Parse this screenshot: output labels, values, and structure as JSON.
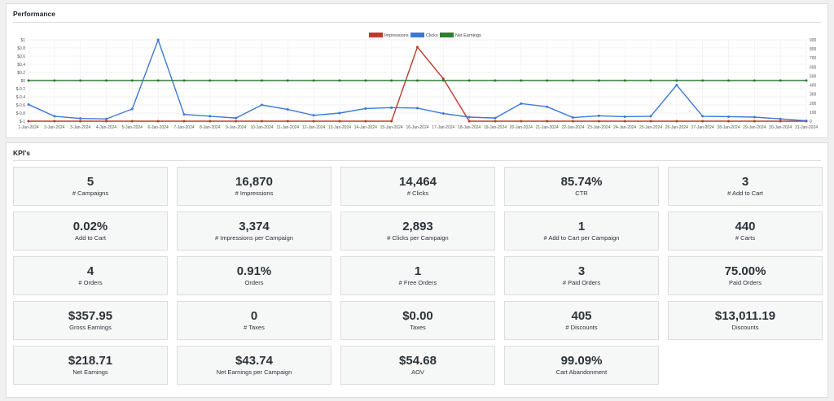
{
  "performance": {
    "title": "Performance"
  },
  "kpis": {
    "title": "KPI's",
    "cards": [
      {
        "value": "5",
        "label": "# Campaigns"
      },
      {
        "value": "16,870",
        "label": "# Impressions"
      },
      {
        "value": "14,464",
        "label": "# Clicks"
      },
      {
        "value": "85.74%",
        "label": "CTR"
      },
      {
        "value": "3",
        "label": "# Add to Cart"
      },
      {
        "value": "0.02%",
        "label": "Add to Cart"
      },
      {
        "value": "3,374",
        "label": "# Impressions per Campaign"
      },
      {
        "value": "2,893",
        "label": "# Clicks per Campaign"
      },
      {
        "value": "1",
        "label": "# Add to Cart per Campaign"
      },
      {
        "value": "440",
        "label": "# Carts"
      },
      {
        "value": "4",
        "label": "# Orders"
      },
      {
        "value": "0.91%",
        "label": "Orders"
      },
      {
        "value": "1",
        "label": "# Free Orders"
      },
      {
        "value": "3",
        "label": "# Paid Orders"
      },
      {
        "value": "75.00%",
        "label": "Paid Orders"
      },
      {
        "value": "$357.95",
        "label": "Gross Earnings"
      },
      {
        "value": "0",
        "label": "# Taxes"
      },
      {
        "value": "$0.00",
        "label": "Taxes"
      },
      {
        "value": "405",
        "label": "# Discounts"
      },
      {
        "value": "$13,011.19",
        "label": "Discounts"
      },
      {
        "value": "$218.71",
        "label": "Net Earnings"
      },
      {
        "value": "$43.74",
        "label": "Net Earnings per Campaign"
      },
      {
        "value": "$54.68",
        "label": "AOV"
      },
      {
        "value": "99.09%",
        "label": "Cart Abandonment"
      }
    ]
  },
  "chart_data": {
    "type": "line",
    "x": [
      "1-Jan-2024",
      "2-Jan-2024",
      "3-Jan-2024",
      "4-Jan-2024",
      "5-Jan-2024",
      "6-Jan-2024",
      "7-Jan-2024",
      "8-Jan-2024",
      "9-Jan-2024",
      "10-Jan-2024",
      "11-Jan-2024",
      "12-Jan-2024",
      "13-Jan-2024",
      "14-Jan-2024",
      "15-Jan-2024",
      "16-Jan-2024",
      "17-Jan-2024",
      "18-Jan-2024",
      "19-Jan-2024",
      "20-Jan-2024",
      "21-Jan-2024",
      "22-Jan-2024",
      "23-Jan-2024",
      "24-Jan-2024",
      "25-Jan-2024",
      "26-Jan-2024",
      "27-Jan-2024",
      "28-Jan-2024",
      "29-Jan-2024",
      "30-Jan-2024",
      "31-Jan-2024"
    ],
    "series": [
      {
        "name": "Impressions",
        "color": "#c0392b",
        "axis": "right",
        "values": [
          0,
          0,
          0,
          0,
          0,
          0,
          0,
          0,
          0,
          0,
          0,
          0,
          0,
          0,
          0,
          820,
          470,
          0,
          0,
          0,
          0,
          0,
          0,
          0,
          0,
          0,
          0,
          0,
          0,
          0,
          0
        ]
      },
      {
        "name": "Clicks",
        "color": "#3c78d8",
        "axis": "right",
        "values": [
          185,
          55,
          30,
          25,
          135,
          900,
          75,
          55,
          35,
          180,
          130,
          65,
          90,
          140,
          150,
          145,
          85,
          45,
          35,
          195,
          160,
          40,
          60,
          50,
          55,
          400,
          55,
          50,
          45,
          25,
          5
        ]
      },
      {
        "name": "Net Earnings",
        "color": "#2e7d32",
        "axis": "left",
        "values": [
          0,
          0,
          0,
          0,
          0,
          0,
          0,
          0,
          0,
          0,
          0,
          0,
          0,
          0,
          0,
          0,
          0,
          0,
          0,
          0,
          0,
          0,
          0,
          0,
          0,
          0,
          0,
          0,
          0,
          0,
          0
        ]
      }
    ],
    "left_axis": {
      "ticks": [
        "$1",
        "$0.8",
        "$0.6",
        "$0.4",
        "$0.2",
        "$0",
        "$-0.2",
        "$-0.4",
        "$-0.6",
        "$-0.8",
        "$-1"
      ],
      "range": [
        -1,
        1
      ]
    },
    "right_axis": {
      "ticks": [
        "900",
        "800",
        "700",
        "600",
        "500",
        "400",
        "300",
        "200",
        "100",
        "0"
      ],
      "range": [
        0,
        900
      ]
    },
    "grid": true,
    "legend_position": "top-center"
  }
}
